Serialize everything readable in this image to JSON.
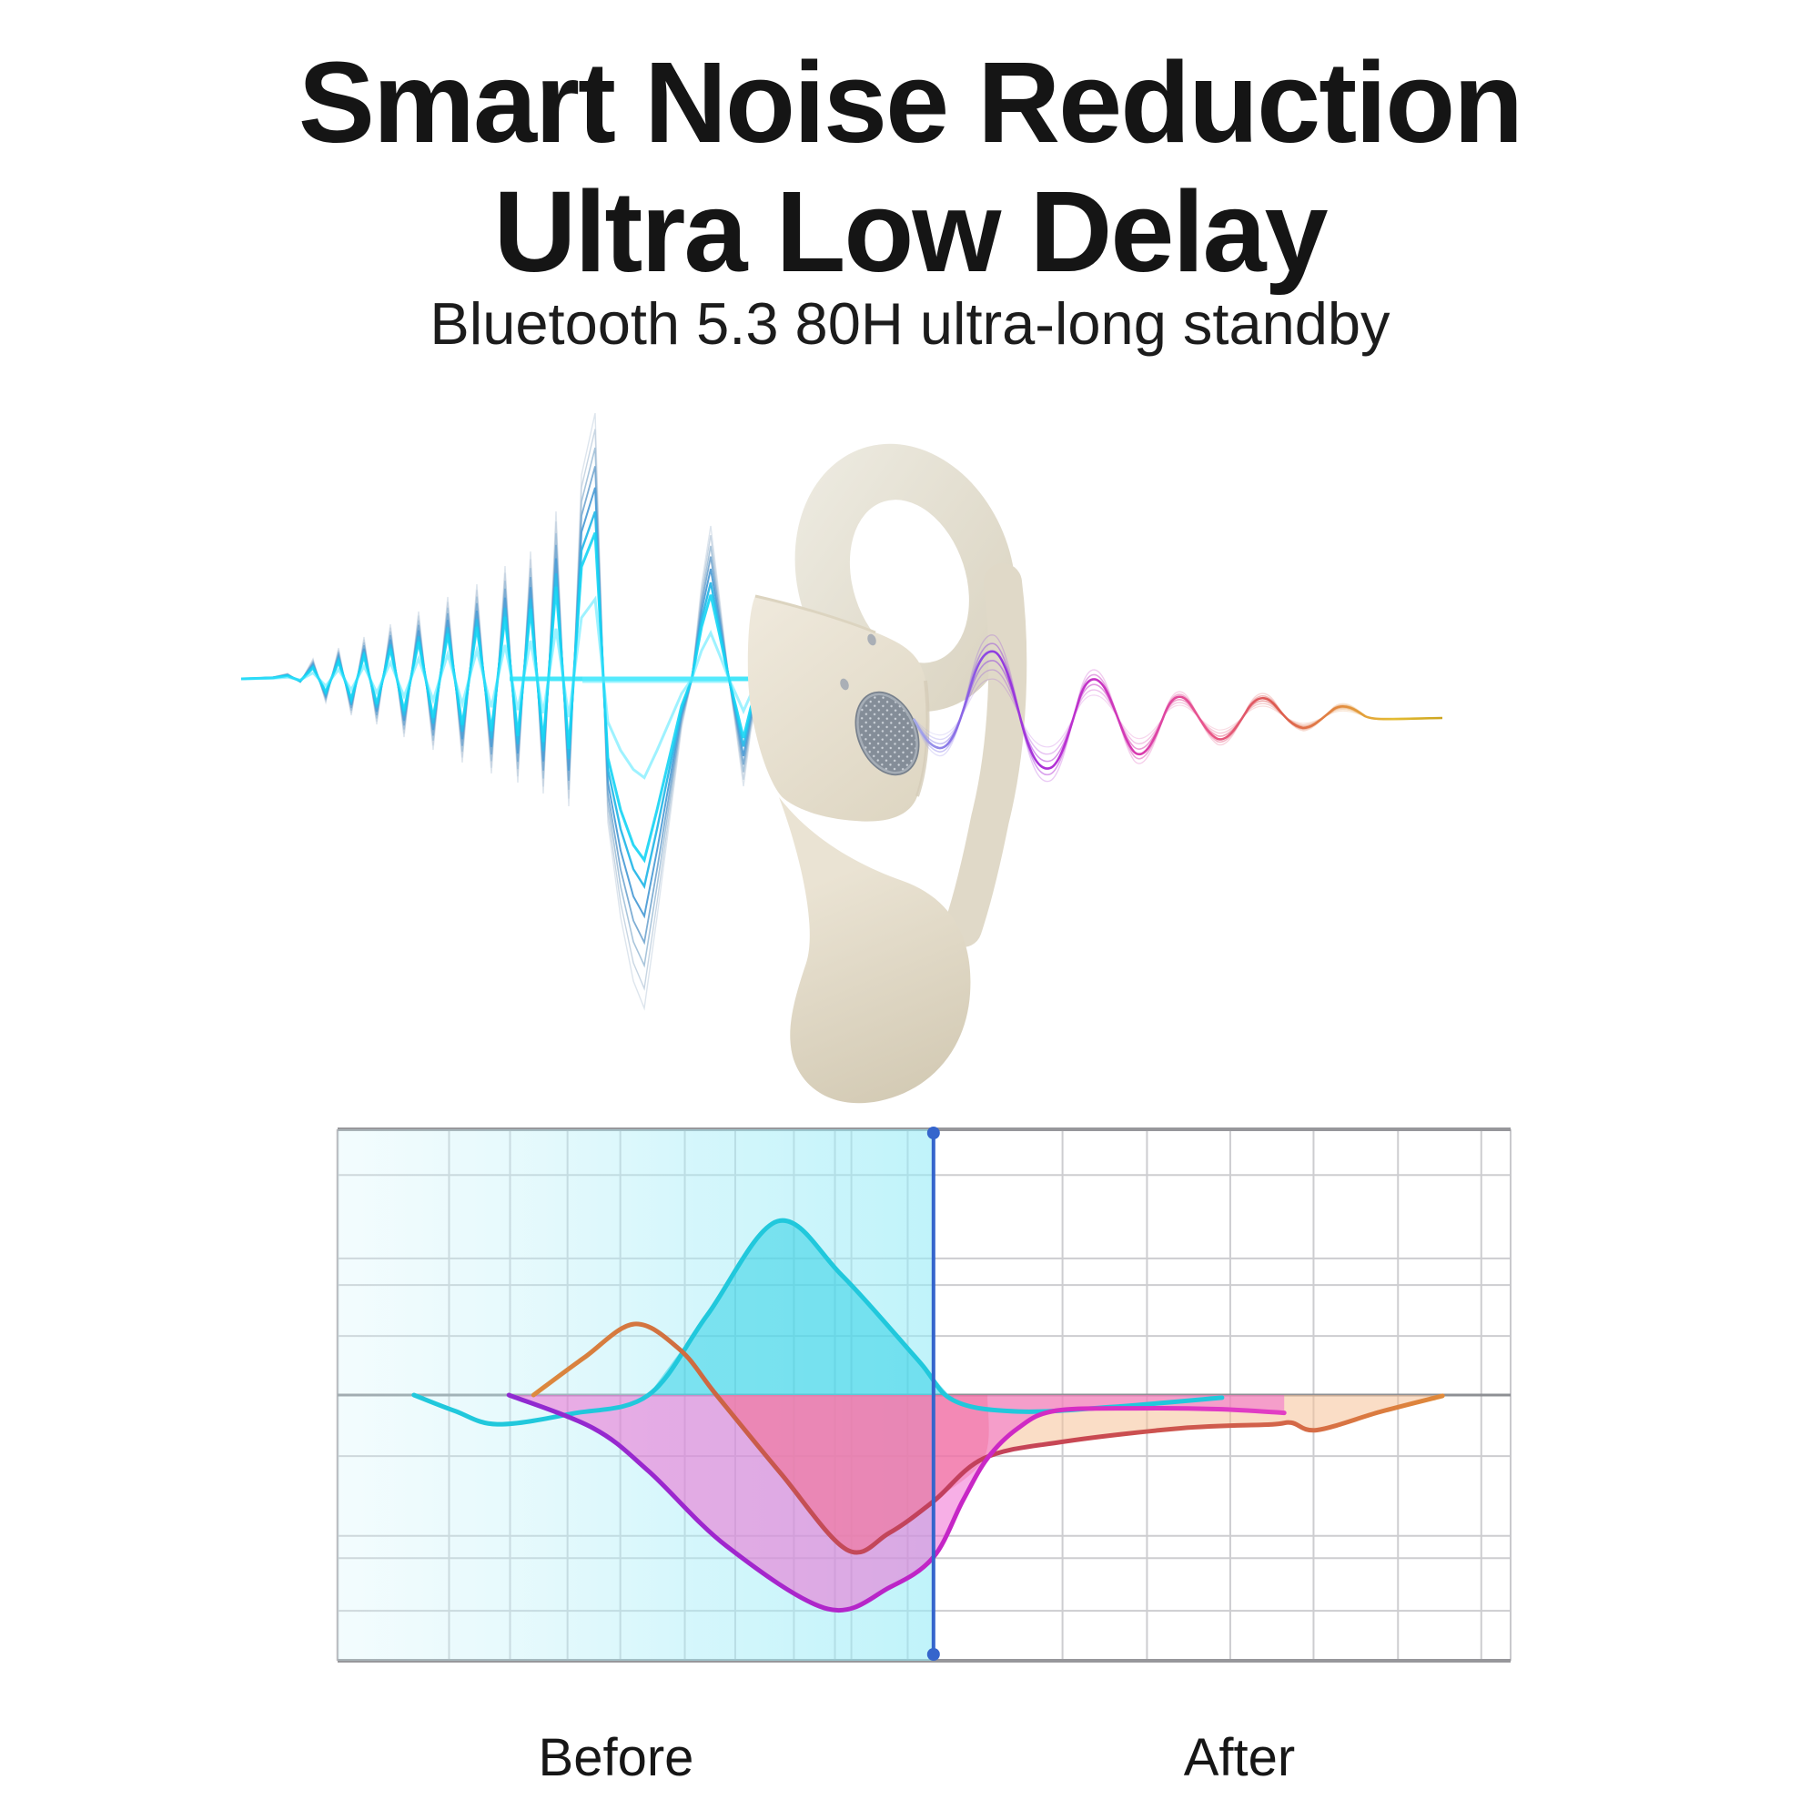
{
  "header": {
    "title_line1": "Smart Noise Reduction",
    "title_line2": "Ultra Low Delay",
    "subtitle": "Bluetooth 5.3 80H ultra-long standby"
  },
  "hero": {
    "noise_wave_colors": [
      "#dce4ed",
      "#79aad2",
      "#2ab9e8",
      "#15d4f4"
    ],
    "clean_wave_colors": [
      "#8a79e8",
      "#9b2fd8",
      "#c631c9",
      "#e8568c",
      "#dd5a50",
      "#e28a40",
      "#e6c832"
    ],
    "earbud_body_color": "#e9e2d3",
    "speaker_grille_color": "#848d98"
  },
  "chart_data": {
    "type": "area",
    "title": "",
    "x_axis": {
      "scale": "unlabeled",
      "grid": true
    },
    "y_axis": {
      "scale": "unlabeled",
      "zero_line": true
    },
    "divider_x_percent": 50.8,
    "marker": {
      "x_percent": 50.8,
      "color": "#3565cc",
      "dot_radius": 7
    },
    "grid": {
      "vertical_percent": [
        9.5,
        14.7,
        19.6,
        24.1,
        29.6,
        33.9,
        38.9,
        42.4,
        43.8,
        48.6,
        61.8,
        69.0,
        76.1,
        83.2,
        90.4,
        97.5
      ],
      "horizontal_percent": [
        8.6,
        24.3,
        29.3,
        38.9,
        61.5,
        76.5,
        80.7,
        90.6
      ]
    },
    "regions": [
      {
        "label": "Before",
        "x_percent": 23.7,
        "highlighted": true
      },
      {
        "label": "After",
        "x_percent": 76.9,
        "highlighted": false
      }
    ],
    "series": [
      {
        "name": "noise-level",
        "stroke": "#21c8dc",
        "width": 5,
        "points": [
          [
            6.5,
            0
          ],
          [
            10,
            -6
          ],
          [
            13.6,
            -11
          ],
          [
            20,
            -7
          ],
          [
            26.5,
            0
          ],
          [
            31.5,
            30
          ],
          [
            37.5,
            65.4
          ],
          [
            43,
            45
          ],
          [
            49.5,
            13
          ],
          [
            52.5,
            -2
          ],
          [
            58,
            -6.2
          ],
          [
            66,
            -4.5
          ],
          [
            75.4,
            -1
          ]
        ]
      },
      {
        "name": "reference-signal",
        "stroke_gradient": "orange-grad",
        "width": 5,
        "points": [
          [
            16.7,
            0
          ],
          [
            21,
            14
          ],
          [
            25.3,
            26.7
          ],
          [
            29.2,
            17
          ],
          [
            32.3,
            0
          ],
          [
            37.8,
            -29.6
          ],
          [
            43.4,
            -58.2
          ],
          [
            47,
            -52
          ],
          [
            50.8,
            -40
          ],
          [
            55.1,
            -23.8
          ],
          [
            61.8,
            -17.6
          ],
          [
            71.9,
            -12.5
          ],
          [
            79.5,
            -11.1
          ],
          [
            81.3,
            -10.4
          ],
          [
            83.5,
            -13.2
          ],
          [
            88.9,
            -6.3
          ],
          [
            94.2,
            -0.3
          ]
        ]
      },
      {
        "name": "processed-signal",
        "stroke_gradient": "magenta-grad",
        "width": 5,
        "points": [
          [
            14.6,
            0
          ],
          [
            21.8,
            -12.5
          ],
          [
            26.5,
            -28.6
          ],
          [
            33.2,
            -57
          ],
          [
            41.8,
            -80.5
          ],
          [
            47.1,
            -72.3
          ],
          [
            50.8,
            -61
          ],
          [
            53.3,
            -39.8
          ],
          [
            55.4,
            -23.8
          ],
          [
            58,
            -12.5
          ],
          [
            61.1,
            -6
          ],
          [
            68,
            -5
          ],
          [
            75,
            -5.3
          ],
          [
            80.7,
            -6.7
          ]
        ]
      }
    ],
    "areas": [
      {
        "name": "noise-peak-fill",
        "fill": "rgba(34,206,228,0.5)",
        "points": [
          [
            26.5,
            0
          ],
          [
            31.5,
            30
          ],
          [
            37.5,
            65.4
          ],
          [
            43,
            45
          ],
          [
            49.5,
            13
          ],
          [
            52.5,
            -2
          ]
        ]
      },
      {
        "name": "after-residual-fill",
        "fill": "rgba(246,193,152,0.55)",
        "points": [
          [
            32.3,
            0
          ],
          [
            37.8,
            -29.6
          ],
          [
            43.4,
            -58.2
          ],
          [
            47,
            -52
          ],
          [
            50.8,
            -40
          ],
          [
            55.1,
            -23.8
          ],
          [
            61.8,
            -17.6
          ],
          [
            71.9,
            -12.5
          ],
          [
            79.5,
            -11.1
          ],
          [
            81.3,
            -10.4
          ],
          [
            83.5,
            -13.2
          ],
          [
            88.9,
            -6.3
          ],
          [
            94.2,
            -0.3
          ]
        ]
      },
      {
        "name": "processed-fill",
        "fill": "rgba(240,95,205,0.5)",
        "points": [
          [
            14.6,
            0
          ],
          [
            21.8,
            -12.5
          ],
          [
            26.5,
            -28.6
          ],
          [
            33.2,
            -57
          ],
          [
            41.8,
            -80.5
          ],
          [
            47.1,
            -72.3
          ],
          [
            50.8,
            -61
          ],
          [
            53.3,
            -39.8
          ],
          [
            55.4,
            -23.8
          ],
          [
            58,
            -12.5
          ],
          [
            61.1,
            -6
          ],
          [
            68,
            -5
          ],
          [
            75,
            -5.3
          ],
          [
            80.7,
            -6.7
          ]
        ]
      },
      {
        "name": "deep-warm-tint",
        "fill": "rgba(236,84,130,0.28)",
        "points": [
          [
            32.3,
            0
          ],
          [
            37.8,
            -29.6
          ],
          [
            43.4,
            -58.2
          ],
          [
            47,
            -52
          ],
          [
            50.8,
            -40
          ],
          [
            55.1,
            -23.8
          ],
          [
            55.4,
            0
          ]
        ]
      }
    ],
    "colors": {
      "before_overlay": "#9fe9f5",
      "grid": "#cdcdd0",
      "frame": "#97979b",
      "zero_line": "#8e9094"
    }
  }
}
